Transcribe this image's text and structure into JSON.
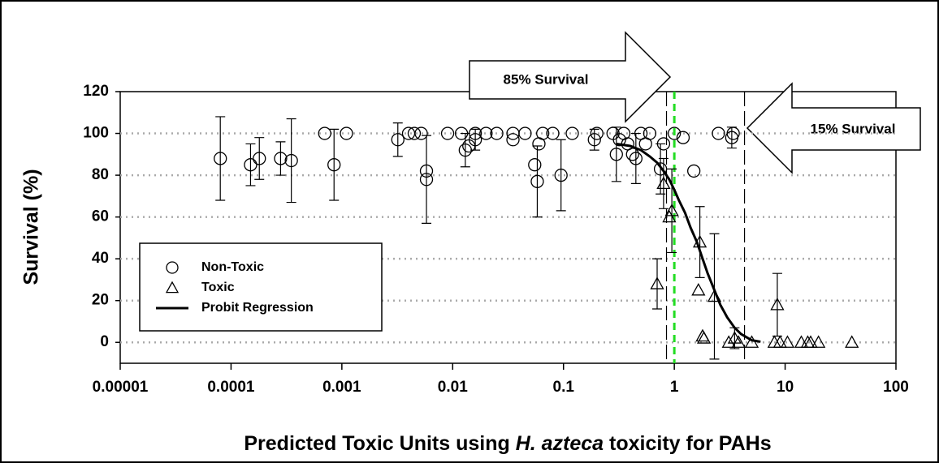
{
  "chart_data": {
    "type": "scatter",
    "xlabel": [
      "Predicted Toxic Units using ",
      "H. azteca",
      " toxicity for PAHs"
    ],
    "ylabel": "Survival (%)",
    "annotations": [
      "85% Survival",
      "15% Survival"
    ],
    "xlog": true,
    "xlim": [
      1e-05,
      100
    ],
    "xticks": [
      1e-05,
      0.0001,
      0.001,
      0.01,
      0.1,
      1,
      10,
      100
    ],
    "ylim": [
      -10,
      120
    ],
    "yticks": [
      0,
      20,
      40,
      60,
      80,
      100,
      120
    ],
    "grid": true,
    "reference_lines": [
      {
        "value": 0.85,
        "color": "#000000"
      },
      {
        "value": 4.3,
        "color": "#000000"
      },
      {
        "value": 1,
        "color": "#22dd22"
      }
    ],
    "series": [
      {
        "name": "Non-Toxic",
        "marker": "circle",
        "color": "#000000",
        "x": [
          8e-05,
          0.00015,
          0.00018,
          0.00028,
          0.00035,
          0.0007,
          0.00085,
          0.0011,
          0.0032,
          0.004,
          0.0045,
          0.0052,
          0.0058,
          0.0058,
          0.009,
          0.012,
          0.013,
          0.014,
          0.016,
          0.016,
          0.02,
          0.025,
          0.035,
          0.035,
          0.045,
          0.055,
          0.058,
          0.06,
          0.065,
          0.08,
          0.095,
          0.12,
          0.19,
          0.2,
          0.28,
          0.3,
          0.32,
          0.35,
          0.38,
          0.42,
          0.45,
          0.5,
          0.55,
          0.6,
          0.75,
          0.8,
          1.0,
          1.2,
          1.5,
          2.5,
          3.3,
          3.4
        ],
        "values": [
          88,
          85,
          88,
          88,
          87,
          100,
          85,
          100,
          97,
          100,
          100,
          100,
          82,
          78,
          100,
          100,
          92,
          94,
          97,
          100,
          100,
          100,
          97,
          100,
          100,
          85,
          77,
          95,
          100,
          100,
          80,
          100,
          97,
          100,
          100,
          90,
          97,
          100,
          95,
          90,
          88,
          100,
          95,
          100,
          83,
          95,
          100,
          98,
          82,
          100,
          98,
          100
        ],
        "errors": [
          20,
          10,
          10,
          8,
          20,
          null,
          17,
          null,
          8,
          null,
          null,
          null,
          null,
          21,
          null,
          null,
          8,
          null,
          5,
          null,
          null,
          null,
          null,
          null,
          null,
          null,
          17,
          null,
          null,
          null,
          17,
          null,
          5,
          null,
          null,
          13,
          null,
          null,
          null,
          null,
          12,
          null,
          null,
          null,
          12,
          null,
          null,
          null,
          null,
          null,
          5,
          null
        ]
      },
      {
        "name": "Toxic",
        "marker": "triangle",
        "color": "#000000",
        "x": [
          0.7,
          0.8,
          0.9,
          0.95,
          1.7,
          1.65,
          1.8,
          1.85,
          2.3,
          3.1,
          3.5,
          3.8,
          5,
          8,
          8.5,
          9,
          10.5,
          14,
          16,
          17,
          20,
          40
        ],
        "values": [
          28,
          76,
          60,
          63,
          48,
          25,
          3,
          2,
          22,
          0,
          2,
          0,
          0,
          0,
          18,
          0,
          0,
          0,
          0,
          0,
          0,
          0
        ],
        "errors": [
          12,
          12,
          null,
          20,
          17,
          null,
          null,
          null,
          30,
          null,
          5,
          null,
          null,
          null,
          15,
          null,
          null,
          null,
          null,
          null,
          null,
          null
        ]
      },
      {
        "name": "Probit Regression",
        "marker": "line",
        "color": "#000000",
        "x": [
          0.3,
          0.4,
          0.5,
          0.6,
          0.7,
          0.8,
          0.9,
          1.0,
          1.1,
          1.25,
          1.4,
          1.6,
          1.8,
          2.0,
          2.3,
          2.6,
          3.0,
          3.5,
          4.0,
          5.0,
          6.0
        ],
        "values": [
          95,
          94,
          92,
          89,
          86,
          82,
          78,
          73,
          68,
          62,
          55,
          48,
          40,
          33,
          25,
          18,
          12,
          7,
          4,
          1,
          0.3
        ]
      }
    ]
  }
}
